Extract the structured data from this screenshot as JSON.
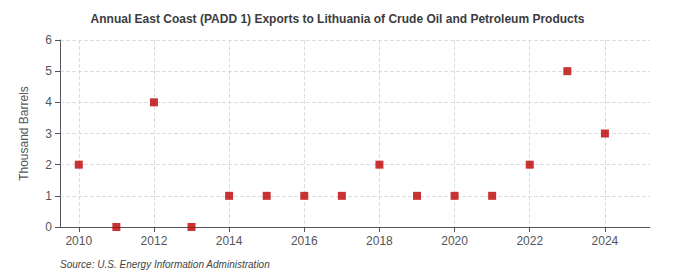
{
  "chart_data": {
    "type": "scatter",
    "title": "Annual East Coast (PADD 1) Exports to Lithuania of Crude Oil and Petroleum Products",
    "ylabel": "Thousand Barrels",
    "annotations": [
      "Source: U.S. Energy Information Administration"
    ],
    "x": [
      2010,
      2011,
      2012,
      2013,
      2014,
      2015,
      2016,
      2017,
      2018,
      2019,
      2020,
      2021,
      2022,
      2023,
      2024
    ],
    "values": [
      2,
      0,
      4,
      0,
      1,
      1,
      1,
      1,
      2,
      1,
      1,
      1,
      2,
      5,
      3
    ],
    "color": "#bb0000",
    "marker": "square",
    "xlim": [
      2009.5,
      2025.2
    ],
    "ylim": [
      0,
      6
    ],
    "xticks": [
      2010,
      2012,
      2014,
      2016,
      2018,
      2020,
      2022,
      2024
    ],
    "yticks": [
      0,
      1,
      2,
      3,
      4,
      5,
      6
    ],
    "grid": true
  }
}
